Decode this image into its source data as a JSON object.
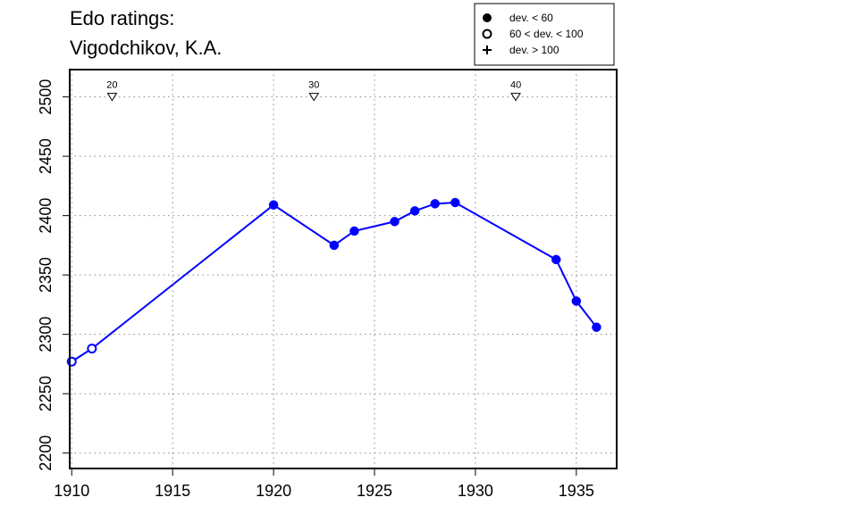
{
  "chart_data": {
    "type": "line",
    "title_lines": [
      "Edo ratings:",
      "Vigodchikov, K.A."
    ],
    "xlabel": "",
    "ylabel": "",
    "xlim": [
      1909.9,
      1937.0
    ],
    "ylim": [
      2187,
      2523
    ],
    "x_ticks": [
      1910,
      1915,
      1920,
      1925,
      1930,
      1935
    ],
    "y_ticks": [
      2200,
      2250,
      2300,
      2350,
      2400,
      2450,
      2500
    ],
    "grid": "dotted at tick positions",
    "line_color": "#0000ff",
    "series": [
      {
        "points": [
          {
            "x": 1910,
            "y": 2277,
            "marker": "open"
          },
          {
            "x": 1911,
            "y": 2288,
            "marker": "open"
          },
          {
            "x": 1920,
            "y": 2409,
            "marker": "filled"
          },
          {
            "x": 1923,
            "y": 2375,
            "marker": "filled"
          },
          {
            "x": 1924,
            "y": 2387,
            "marker": "filled"
          },
          {
            "x": 1926,
            "y": 2395,
            "marker": "filled"
          },
          {
            "x": 1927,
            "y": 2404,
            "marker": "filled"
          },
          {
            "x": 1928,
            "y": 2410,
            "marker": "filled"
          },
          {
            "x": 1929,
            "y": 2411,
            "marker": "filled"
          },
          {
            "x": 1934,
            "y": 2363,
            "marker": "filled"
          },
          {
            "x": 1935,
            "y": 2328,
            "marker": "filled"
          },
          {
            "x": 1936,
            "y": 2306,
            "marker": "filled"
          }
        ]
      }
    ],
    "age_markers": [
      {
        "label": "20",
        "x": 1912
      },
      {
        "label": "30",
        "x": 1922
      },
      {
        "label": "40",
        "x": 1932
      }
    ],
    "age_marker_y": 2500,
    "legend": {
      "position": "top-right",
      "entries": [
        {
          "symbol": "filled-circle",
          "label": "dev. < 60"
        },
        {
          "symbol": "open-circle",
          "label": "60 < dev. < 100"
        },
        {
          "symbol": "plus",
          "label": "dev. > 100"
        }
      ]
    }
  }
}
